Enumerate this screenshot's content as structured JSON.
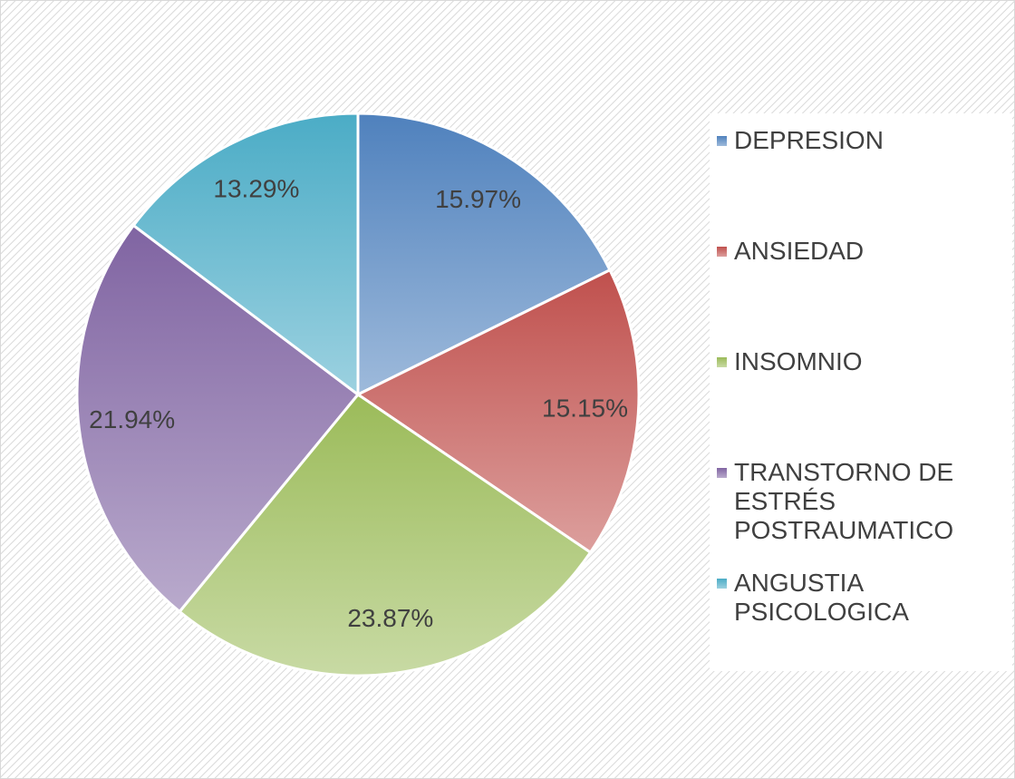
{
  "chart_data": {
    "type": "pie",
    "categories": [
      "DEPRESION",
      "ANSIEDAD",
      "INSOMNIO",
      "TRANSTORNO DE ESTRÉS POSTRAUMATICO",
      "ANGUSTIA PSICOLOGICA"
    ],
    "values": [
      15.97,
      15.15,
      23.87,
      21.94,
      13.29
    ],
    "value_labels": [
      "15.97%",
      "15.15%",
      "23.87%",
      "21.94%",
      "13.29%"
    ],
    "colors": [
      "#4f81bd",
      "#c0504d",
      "#9bbb59",
      "#8064a2",
      "#4bacc6"
    ],
    "legend": "right"
  }
}
